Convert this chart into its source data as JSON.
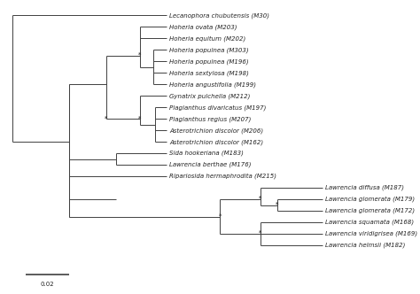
{
  "taxa": [
    "Lecanophora chubutensis (M30)",
    "Hoheria ovata (M203)",
    "Hoheria equitum (M202)",
    "Hoheria populnea (M303)",
    "Hoheria populnea (M196)",
    "Hoheria sextylosa (M198)",
    "Hoheria angustifolia (M199)",
    "Gynatrix pulchella (M212)",
    "Plagianthus divaricatus (M197)",
    "Plagianthus regius (M207)",
    "Asterotrichion discolor (M206)",
    "Asterotrichion discolor (M162)",
    "Sida hookeriana (M183)",
    "Lawrencia berthae (M176)",
    "Ripariosida hermaphrodita (M215)",
    "Lawrencia diffusa (M187)",
    "Lawrencia glomerata (M179)",
    "Lawrencia glomerata (M172)",
    "Lawrencia squamata (M168)",
    "Lawrencia viridigrisea (M169)",
    "Lawrencia helmsii (M182)"
  ],
  "line_color": "#404040",
  "text_color": "#222222",
  "background_color": "#ffffff",
  "font_size": 5.0,
  "scale_bar_label": "0.02",
  "figsize": [
    4.74,
    3.32
  ],
  "dpi": 100
}
